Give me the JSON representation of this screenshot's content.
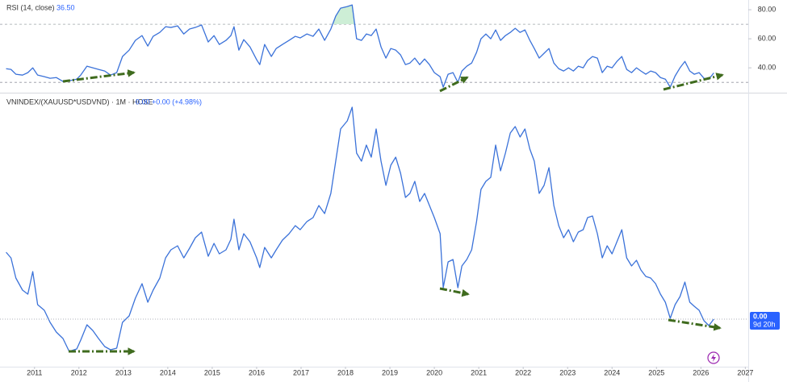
{
  "chart_data": [
    {
      "type": "line",
      "title": "RSI (14, close)",
      "last_value_label": "36.50",
      "color": "#3b72d9",
      "fill_color": "#cdeed6",
      "xlim": [
        2010.35,
        2027.03
      ],
      "ylim": [
        24,
        86.7
      ],
      "yticks": [
        {
          "value": 40,
          "label": "40.00"
        },
        {
          "value": 60,
          "label": "60.00"
        },
        {
          "value": 80,
          "label": "80.00"
        }
      ],
      "hlines": [
        30,
        70
      ],
      "x": [
        2010.36,
        2010.47,
        2010.58,
        2010.73,
        2010.85,
        2010.96,
        2011.07,
        2011.22,
        2011.35,
        2011.49,
        2011.64,
        2011.78,
        2011.95,
        2012.04,
        2012.18,
        2012.31,
        2012.44,
        2012.58,
        2012.71,
        2012.85,
        2012.98,
        2013.13,
        2013.27,
        2013.42,
        2013.55,
        2013.67,
        2013.82,
        2013.95,
        2014.07,
        2014.22,
        2014.36,
        2014.49,
        2014.62,
        2014.76,
        2014.91,
        2015.04,
        2015.16,
        2015.31,
        2015.42,
        2015.49,
        2015.6,
        2015.71,
        2015.85,
        2016,
        2016.07,
        2016.18,
        2016.33,
        2016.44,
        2016.58,
        2016.73,
        2016.87,
        2016.98,
        2017.13,
        2017.27,
        2017.4,
        2017.53,
        2017.67,
        2017.78,
        2017.89,
        2018.04,
        2018.15,
        2018.25,
        2018.36,
        2018.47,
        2018.58,
        2018.69,
        2018.8,
        2018.91,
        2019.02,
        2019.13,
        2019.24,
        2019.35,
        2019.45,
        2019.56,
        2019.67,
        2019.78,
        2019.89,
        2020,
        2020.13,
        2020.2,
        2020.31,
        2020.42,
        2020.53,
        2020.62,
        2020.73,
        2020.84,
        2020.95,
        2021.05,
        2021.16,
        2021.27,
        2021.38,
        2021.49,
        2021.6,
        2021.71,
        2021.82,
        2021.93,
        2022.04,
        2022.15,
        2022.25,
        2022.36,
        2022.47,
        2022.58,
        2022.69,
        2022.8,
        2022.91,
        2023.02,
        2023.13,
        2023.24,
        2023.35,
        2023.45,
        2023.56,
        2023.67,
        2023.78,
        2023.89,
        2024,
        2024.11,
        2024.22,
        2024.33,
        2024.44,
        2024.55,
        2024.65,
        2024.76,
        2024.87,
        2024.98,
        2025.09,
        2025.2,
        2025.31,
        2025.42,
        2025.53,
        2025.64,
        2025.75,
        2025.85,
        2025.96,
        2026.07,
        2026.18,
        2026.29
      ],
      "values": [
        39.4,
        38.9,
        35.6,
        35.0,
        36.7,
        40.0,
        35.0,
        33.9,
        32.8,
        33.3,
        30.6,
        31.1,
        32.2,
        35.0,
        41.1,
        40.0,
        38.9,
        37.8,
        35.0,
        36.7,
        47.8,
        52.2,
        58.9,
        62.2,
        55.0,
        61.7,
        64.4,
        68.3,
        67.8,
        68.9,
        63.3,
        66.7,
        67.8,
        69.5,
        57.8,
        62.2,
        56.1,
        58.9,
        62.2,
        68.3,
        52.2,
        59.4,
        54.4,
        45.6,
        42.2,
        56.1,
        47.8,
        53.3,
        56.1,
        58.9,
        61.7,
        60.6,
        63.3,
        61.7,
        66.7,
        58.9,
        66.7,
        75.6,
        81.1,
        82.2,
        83.3,
        60.0,
        58.9,
        63.3,
        62.2,
        66.7,
        54.4,
        46.7,
        53.3,
        52.2,
        48.9,
        42.2,
        43.3,
        46.7,
        42.2,
        46.1,
        42.2,
        36.7,
        33.9,
        26.7,
        35.6,
        36.7,
        30.0,
        37.8,
        41.1,
        43.3,
        50.6,
        60.0,
        63.3,
        60.0,
        66.1,
        58.9,
        62.2,
        64.4,
        67.2,
        64.4,
        66.1,
        58.9,
        53.3,
        46.7,
        50.0,
        53.3,
        43.3,
        39.4,
        37.8,
        40.0,
        37.8,
        41.1,
        40.0,
        45.0,
        47.8,
        46.7,
        36.7,
        41.1,
        40.0,
        44.4,
        47.8,
        38.9,
        36.7,
        40.0,
        37.8,
        35.6,
        37.8,
        36.7,
        33.3,
        32.2,
        26.7,
        34.4,
        40.0,
        44.4,
        37.8,
        35.6,
        36.7,
        32.8,
        32.2,
        36.5
      ]
    },
    {
      "type": "line",
      "title": "VNINDEX/(XAUUSD*USDVND) · 1M · HOSE",
      "quote": "0.00  +0.00 (+4.98%)",
      "last_label": "0.00",
      "countdown": "9d 20h",
      "color": "#3b72d9",
      "xlim": [
        2010.35,
        2027.03
      ],
      "ylim": [
        9.1e-06,
        4.28e-05
      ],
      "xticks": [
        2011,
        2012,
        2013,
        2014,
        2015,
        2016,
        2017,
        2018,
        2019,
        2020,
        2021,
        2022,
        2023,
        2024,
        2025,
        2026,
        2027
      ],
      "x": [
        2010.36,
        2010.47,
        2010.58,
        2010.73,
        2010.85,
        2010.96,
        2011.07,
        2011.22,
        2011.35,
        2011.49,
        2011.64,
        2011.78,
        2011.95,
        2012.04,
        2012.18,
        2012.31,
        2012.44,
        2012.58,
        2012.71,
        2012.85,
        2012.98,
        2013.13,
        2013.27,
        2013.42,
        2013.55,
        2013.67,
        2013.82,
        2013.95,
        2014.07,
        2014.22,
        2014.36,
        2014.49,
        2014.62,
        2014.76,
        2014.91,
        2015.04,
        2015.16,
        2015.31,
        2015.42,
        2015.49,
        2015.6,
        2015.71,
        2015.85,
        2016,
        2016.07,
        2016.18,
        2016.33,
        2016.44,
        2016.58,
        2016.73,
        2016.87,
        2016.98,
        2017.13,
        2017.27,
        2017.4,
        2017.53,
        2017.67,
        2017.78,
        2017.89,
        2018.04,
        2018.15,
        2018.25,
        2018.36,
        2018.47,
        2018.58,
        2018.69,
        2018.8,
        2018.91,
        2019.02,
        2019.13,
        2019.24,
        2019.35,
        2019.45,
        2019.56,
        2019.67,
        2019.78,
        2019.89,
        2020,
        2020.13,
        2020.2,
        2020.31,
        2020.42,
        2020.53,
        2020.62,
        2020.73,
        2020.84,
        2020.95,
        2021.05,
        2021.16,
        2021.27,
        2021.38,
        2021.49,
        2021.6,
        2021.71,
        2021.82,
        2021.93,
        2022.04,
        2022.15,
        2022.25,
        2022.36,
        2022.47,
        2022.58,
        2022.69,
        2022.8,
        2022.91,
        2023.02,
        2023.13,
        2023.24,
        2023.35,
        2023.45,
        2023.56,
        2023.67,
        2023.78,
        2023.89,
        2024,
        2024.11,
        2024.22,
        2024.33,
        2024.44,
        2024.55,
        2024.65,
        2024.76,
        2024.87,
        2024.98,
        2025.09,
        2025.2,
        2025.31,
        2025.42,
        2025.53,
        2025.64,
        2025.75,
        2025.85,
        2025.96,
        2026.07,
        2026.18,
        2026.29
      ],
      "values": [
        2.33e-05,
        2.26e-05,
        2.01e-05,
        1.86e-05,
        1.81e-05,
        2.09e-05,
        1.68e-05,
        1.61e-05,
        1.46e-05,
        1.34e-05,
        1.26e-05,
        1.1e-05,
        1.13e-05,
        1.24e-05,
        1.43e-05,
        1.36e-05,
        1.26e-05,
        1.16e-05,
        1.12e-05,
        1.14e-05,
        1.46e-05,
        1.54e-05,
        1.76e-05,
        1.94e-05,
        1.71e-05,
        1.86e-05,
        2.01e-05,
        2.26e-05,
        2.36e-05,
        2.41e-05,
        2.26e-05,
        2.38e-05,
        2.51e-05,
        2.58e-05,
        2.28e-05,
        2.44e-05,
        2.31e-05,
        2.36e-05,
        2.49e-05,
        2.74e-05,
        2.36e-05,
        2.56e-05,
        2.46e-05,
        2.26e-05,
        2.14e-05,
        2.39e-05,
        2.26e-05,
        2.36e-05,
        2.48e-05,
        2.56e-05,
        2.66e-05,
        2.61e-05,
        2.71e-05,
        2.76e-05,
        2.91e-05,
        2.81e-05,
        3.06e-05,
        3.46e-05,
        3.86e-05,
        3.96e-05,
        4.13e-05,
        3.56e-05,
        3.46e-05,
        3.66e-05,
        3.51e-05,
        3.86e-05,
        3.46e-05,
        3.16e-05,
        3.41e-05,
        3.51e-05,
        3.31e-05,
        3.01e-05,
        3.06e-05,
        3.21e-05,
        2.96e-05,
        3.06e-05,
        2.91e-05,
        2.76e-05,
        2.56e-05,
        1.89e-05,
        2.21e-05,
        2.24e-05,
        1.89e-05,
        2.16e-05,
        2.24e-05,
        2.36e-05,
        2.71e-05,
        3.11e-05,
        3.21e-05,
        3.26e-05,
        3.66e-05,
        3.34e-05,
        3.56e-05,
        3.81e-05,
        3.89e-05,
        3.76e-05,
        3.86e-05,
        3.61e-05,
        3.46e-05,
        3.06e-05,
        3.16e-05,
        3.38e-05,
        2.91e-05,
        2.66e-05,
        2.51e-05,
        2.61e-05,
        2.46e-05,
        2.58e-05,
        2.61e-05,
        2.76e-05,
        2.78e-05,
        2.56e-05,
        2.26e-05,
        2.41e-05,
        2.31e-05,
        2.46e-05,
        2.61e-05,
        2.26e-05,
        2.16e-05,
        2.23e-05,
        2.11e-05,
        2.03e-05,
        2.01e-05,
        1.94e-05,
        1.81e-05,
        1.71e-05,
        1.51e-05,
        1.68e-05,
        1.78e-05,
        1.96e-05,
        1.71e-05,
        1.66e-05,
        1.61e-05,
        1.48e-05,
        1.42e-05,
        1.5e-05
      ]
    }
  ]
}
